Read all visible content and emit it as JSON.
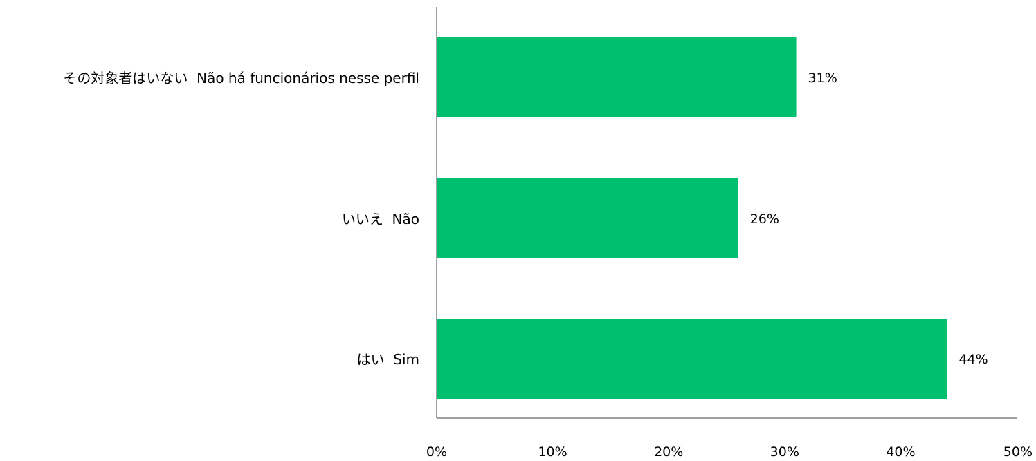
{
  "chart_data": {
    "type": "bar",
    "orientation": "horizontal",
    "categories": [
      "その対象者はいない  Não há funcionários nesse perfil",
      "いいえ  Não",
      "はい  Sim"
    ],
    "values": [
      31,
      26,
      44
    ],
    "value_labels": [
      "31%",
      "26%",
      "44%"
    ],
    "xlim": [
      0,
      50
    ],
    "xticks": [
      0,
      10,
      20,
      30,
      40,
      50
    ],
    "xtick_labels": [
      "0%",
      "10%",
      "20%",
      "30%",
      "40%",
      "50%"
    ],
    "bar_color": "#00BF6F",
    "axis_color": "#808080",
    "grid": false,
    "legend": "none"
  }
}
